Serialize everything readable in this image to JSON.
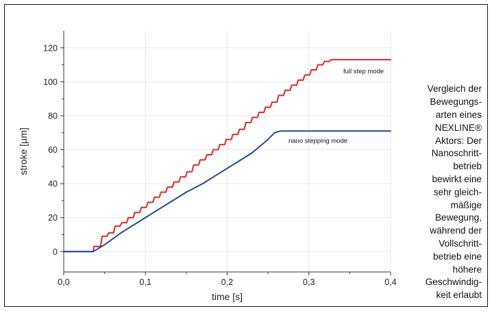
{
  "chart_data": {
    "type": "line",
    "xlabel": "time [s]",
    "ylabel": "stroke [µm]",
    "xlim": [
      0,
      0.4
    ],
    "ylim": [
      -12,
      130
    ],
    "x_ticks": [
      0,
      0.1,
      0.2,
      0.3,
      0.4
    ],
    "x_tick_labels": [
      "0,0",
      "0,1",
      "0,2",
      "0,3",
      "0,4"
    ],
    "y_ticks": [
      0,
      20,
      40,
      60,
      80,
      100,
      120
    ],
    "y_tick_labels": [
      "0",
      "20",
      "40",
      "60",
      "80",
      "100",
      "120"
    ],
    "grid": true,
    "series": [
      {
        "name": "full step mode",
        "color": "#e0282a",
        "x": [
          0,
          0.036,
          0.037,
          0.045,
          0.047,
          0.053,
          0.055,
          0.061,
          0.063,
          0.069,
          0.071,
          0.077,
          0.079,
          0.085,
          0.087,
          0.093,
          0.095,
          0.101,
          0.103,
          0.109,
          0.111,
          0.117,
          0.119,
          0.125,
          0.127,
          0.133,
          0.135,
          0.141,
          0.143,
          0.149,
          0.151,
          0.157,
          0.159,
          0.165,
          0.167,
          0.173,
          0.175,
          0.181,
          0.183,
          0.189,
          0.191,
          0.197,
          0.199,
          0.205,
          0.207,
          0.213,
          0.215,
          0.221,
          0.223,
          0.229,
          0.231,
          0.237,
          0.239,
          0.245,
          0.247,
          0.253,
          0.255,
          0.261,
          0.263,
          0.269,
          0.271,
          0.277,
          0.279,
          0.285,
          0.287,
          0.293,
          0.295,
          0.301,
          0.303,
          0.309,
          0.311,
          0.317,
          0.319,
          0.325,
          0.327,
          0.333,
          0.4
        ],
        "y": [
          0,
          0,
          3,
          3,
          9,
          9,
          11,
          11,
          15,
          15,
          17,
          17,
          20,
          20,
          23,
          23,
          26,
          26,
          29,
          29,
          32,
          32,
          35,
          35,
          38,
          38,
          41,
          41,
          44,
          44,
          47,
          47,
          51,
          51,
          54,
          54,
          57,
          57,
          60,
          60,
          63,
          63,
          66,
          66,
          69,
          69,
          72,
          72,
          76,
          76,
          79,
          79,
          82,
          82,
          85,
          85,
          88,
          88,
          92,
          92,
          95,
          95,
          98,
          98,
          101,
          101,
          104,
          104,
          107,
          107,
          110,
          110,
          112,
          112,
          113,
          113,
          113
        ]
      },
      {
        "name": "nano stepping mode",
        "color": "#1f4a9c",
        "x": [
          0,
          0.036,
          0.05,
          0.07,
          0.09,
          0.11,
          0.13,
          0.15,
          0.17,
          0.19,
          0.21,
          0.23,
          0.25,
          0.258,
          0.265,
          0.3,
          0.4
        ],
        "y": [
          0,
          0,
          4,
          11,
          17,
          23,
          29,
          35,
          40,
          46,
          52,
          58,
          66,
          70,
          71,
          71,
          71
        ]
      }
    ]
  },
  "caption": {
    "lines": [
      "Vergleich der",
      "Bewegungs-",
      "arten eines",
      "NEXLINE®",
      "Aktors: Der",
      "Nanoschritt-",
      "betrieb",
      "bewirkt eine",
      "sehr gleich-",
      "mäßige",
      "Bewegung,",
      "während der",
      "Vollschritt-",
      "betrieb eine",
      "höhere",
      "Geschwindig-",
      "keit erlaubt"
    ]
  }
}
